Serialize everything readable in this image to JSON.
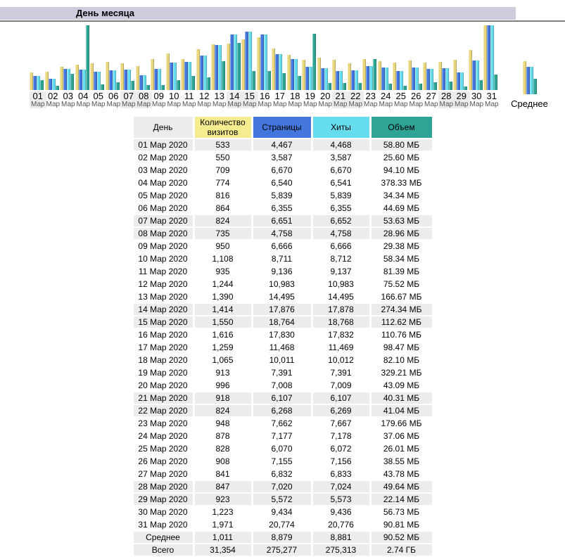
{
  "header": {
    "title": "День месяца"
  },
  "colors": {
    "titlebar_bg": "#CCCCDD",
    "rule": "#808080",
    "weekend_bg": "#ECECEC",
    "visits": "#E8D77D",
    "pages": "#4477DD",
    "hits": "#66DDEE",
    "volume": "#2EA495",
    "header_day_bg": "#ECECEC",
    "header_visits_bg": "#F4EC8E",
    "header_pages_bg": "#4477DD",
    "header_hits_bg": "#66DDEE",
    "header_volume_bg": "#2EA495"
  },
  "chart_data": {
    "type": "bar",
    "title": "День месяца",
    "x_labels": [
      "01",
      "02",
      "03",
      "04",
      "05",
      "06",
      "07",
      "08",
      "09",
      "10",
      "11",
      "12",
      "13",
      "14",
      "15",
      "16",
      "17",
      "18",
      "19",
      "20",
      "21",
      "22",
      "23",
      "24",
      "25",
      "26",
      "27",
      "28",
      "29",
      "30",
      "31"
    ],
    "month_sublabel": "Мар",
    "weekend_days": [
      "01",
      "07",
      "08",
      "14",
      "15",
      "21",
      "22",
      "28",
      "29"
    ],
    "average_label": "Среднее",
    "legend_position": "table-header",
    "grid": false,
    "scaling_note": "each series is normalized to its own maximum; max bar height = 92px",
    "series": [
      {
        "name": "Количество визитов",
        "color": "#E8D77D",
        "max": 1971,
        "values": [
          533,
          550,
          709,
          774,
          816,
          864,
          824,
          735,
          950,
          1108,
          935,
          1244,
          1390,
          1414,
          1550,
          1616,
          1259,
          1065,
          913,
          996,
          918,
          824,
          948,
          878,
          828,
          908,
          841,
          847,
          923,
          1223,
          1971
        ]
      },
      {
        "name": "Страницы",
        "color": "#4477DD",
        "max": 20774,
        "values": [
          4467,
          3587,
          6670,
          6540,
          5839,
          6355,
          6651,
          4758,
          6666,
          8711,
          9136,
          10983,
          14495,
          17876,
          18764,
          17830,
          11468,
          10011,
          7391,
          7008,
          6107,
          6268,
          7662,
          7177,
          6070,
          7155,
          6832,
          7020,
          5572,
          9434,
          20774
        ]
      },
      {
        "name": "Хиты",
        "color": "#66DDEE",
        "max": 20776,
        "values": [
          4468,
          3587,
          6670,
          6541,
          5839,
          6355,
          6652,
          4758,
          6666,
          8712,
          9137,
          10983,
          14495,
          17878,
          18768,
          17832,
          11469,
          10012,
          7391,
          7009,
          6107,
          6269,
          7667,
          7178,
          6072,
          7156,
          6833,
          7024,
          5573,
          9436,
          20776
        ]
      },
      {
        "name": "Объем (МБ)",
        "color": "#2EA495",
        "max": 378.33,
        "values": [
          58.8,
          25.6,
          94.1,
          378.33,
          34.34,
          44.69,
          53.63,
          28.96,
          29.38,
          58.34,
          81.39,
          75.52,
          166.67,
          274.34,
          112.62,
          110.76,
          98.47,
          82.1,
          329.21,
          43.09,
          40.31,
          41.04,
          179.66,
          37.06,
          26.01,
          38.55,
          43.78,
          49.64,
          22.14,
          56.73,
          90.81
        ]
      }
    ],
    "average_values": [
      1011,
      8879,
      8881,
      90.52
    ]
  },
  "table": {
    "headers": [
      "День",
      "Количество визитов",
      "Страницы",
      "Хиты",
      "Объем"
    ],
    "rows": [
      {
        "date": "01 Мар 2020",
        "visits": "533",
        "pages": "4,467",
        "hits": "4,468",
        "volume": "58.80 МБ",
        "shaded": true
      },
      {
        "date": "02 Мар 2020",
        "visits": "550",
        "pages": "3,587",
        "hits": "3,587",
        "volume": "25.60 МБ",
        "shaded": false
      },
      {
        "date": "03 Мар 2020",
        "visits": "709",
        "pages": "6,670",
        "hits": "6,670",
        "volume": "94.10 МБ",
        "shaded": false
      },
      {
        "date": "04 Мар 2020",
        "visits": "774",
        "pages": "6,540",
        "hits": "6,541",
        "volume": "378.33 МБ",
        "shaded": false
      },
      {
        "date": "05 Мар 2020",
        "visits": "816",
        "pages": "5,839",
        "hits": "5,839",
        "volume": "34.34 МБ",
        "shaded": false
      },
      {
        "date": "06 Мар 2020",
        "visits": "864",
        "pages": "6,355",
        "hits": "6,355",
        "volume": "44.69 МБ",
        "shaded": false
      },
      {
        "date": "07 Мар 2020",
        "visits": "824",
        "pages": "6,651",
        "hits": "6,652",
        "volume": "53.63 МБ",
        "shaded": true
      },
      {
        "date": "08 Мар 2020",
        "visits": "735",
        "pages": "4,758",
        "hits": "4,758",
        "volume": "28.96 МБ",
        "shaded": true
      },
      {
        "date": "09 Мар 2020",
        "visits": "950",
        "pages": "6,666",
        "hits": "6,666",
        "volume": "29.38 МБ",
        "shaded": false
      },
      {
        "date": "10 Мар 2020",
        "visits": "1,108",
        "pages": "8,711",
        "hits": "8,712",
        "volume": "58.34 МБ",
        "shaded": false
      },
      {
        "date": "11 Мар 2020",
        "visits": "935",
        "pages": "9,136",
        "hits": "9,137",
        "volume": "81.39 МБ",
        "shaded": false
      },
      {
        "date": "12 Мар 2020",
        "visits": "1,244",
        "pages": "10,983",
        "hits": "10,983",
        "volume": "75.52 МБ",
        "shaded": false
      },
      {
        "date": "13 Мар 2020",
        "visits": "1,390",
        "pages": "14,495",
        "hits": "14,495",
        "volume": "166.67 МБ",
        "shaded": false
      },
      {
        "date": "14 Мар 2020",
        "visits": "1,414",
        "pages": "17,876",
        "hits": "17,878",
        "volume": "274.34 МБ",
        "shaded": true
      },
      {
        "date": "15 Мар 2020",
        "visits": "1,550",
        "pages": "18,764",
        "hits": "18,768",
        "volume": "112.62 МБ",
        "shaded": true
      },
      {
        "date": "16 Мар 2020",
        "visits": "1,616",
        "pages": "17,830",
        "hits": "17,832",
        "volume": "110.76 МБ",
        "shaded": false
      },
      {
        "date": "17 Мар 2020",
        "visits": "1,259",
        "pages": "11,468",
        "hits": "11,469",
        "volume": "98.47 МБ",
        "shaded": false
      },
      {
        "date": "18 Мар 2020",
        "visits": "1,065",
        "pages": "10,011",
        "hits": "10,012",
        "volume": "82.10 МБ",
        "shaded": false
      },
      {
        "date": "19 Мар 2020",
        "visits": "913",
        "pages": "7,391",
        "hits": "7,391",
        "volume": "329.21 МБ",
        "shaded": false
      },
      {
        "date": "20 Мар 2020",
        "visits": "996",
        "pages": "7,008",
        "hits": "7,009",
        "volume": "43.09 МБ",
        "shaded": false
      },
      {
        "date": "21 Мар 2020",
        "visits": "918",
        "pages": "6,107",
        "hits": "6,107",
        "volume": "40.31 МБ",
        "shaded": true
      },
      {
        "date": "22 Мар 2020",
        "visits": "824",
        "pages": "6,268",
        "hits": "6,269",
        "volume": "41.04 МБ",
        "shaded": true
      },
      {
        "date": "23 Мар 2020",
        "visits": "948",
        "pages": "7,662",
        "hits": "7,667",
        "volume": "179.66 МБ",
        "shaded": false
      },
      {
        "date": "24 Мар 2020",
        "visits": "878",
        "pages": "7,177",
        "hits": "7,178",
        "volume": "37.06 МБ",
        "shaded": false
      },
      {
        "date": "25 Мар 2020",
        "visits": "828",
        "pages": "6,070",
        "hits": "6,072",
        "volume": "26.01 МБ",
        "shaded": false
      },
      {
        "date": "26 Мар 2020",
        "visits": "908",
        "pages": "7,155",
        "hits": "7,156",
        "volume": "38.55 МБ",
        "shaded": false
      },
      {
        "date": "27 Мар 2020",
        "visits": "841",
        "pages": "6,832",
        "hits": "6,833",
        "volume": "43.78 МБ",
        "shaded": false
      },
      {
        "date": "28 Мар 2020",
        "visits": "847",
        "pages": "7,020",
        "hits": "7,024",
        "volume": "49.64 МБ",
        "shaded": true
      },
      {
        "date": "29 Мар 2020",
        "visits": "923",
        "pages": "5,572",
        "hits": "5,573",
        "volume": "22.14 МБ",
        "shaded": true
      },
      {
        "date": "30 Мар 2020",
        "visits": "1,223",
        "pages": "9,434",
        "hits": "9,436",
        "volume": "56.73 МБ",
        "shaded": false
      },
      {
        "date": "31 Мар 2020",
        "visits": "1,971",
        "pages": "20,774",
        "hits": "20,776",
        "volume": "90.81 МБ",
        "shaded": false
      }
    ],
    "summary": [
      {
        "date": "Среднее",
        "visits": "1,011",
        "pages": "8,879",
        "hits": "8,881",
        "volume": "90.52 МБ",
        "shaded": true
      },
      {
        "date": "Всего",
        "visits": "31,354",
        "pages": "275,277",
        "hits": "275,313",
        "volume": "2.74 ГБ",
        "shaded": true
      }
    ]
  }
}
